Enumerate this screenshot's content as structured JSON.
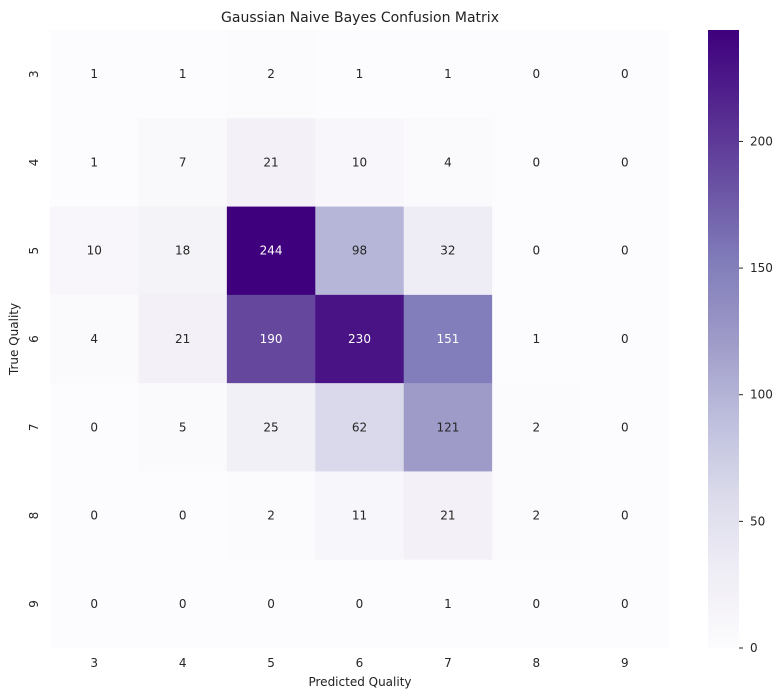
{
  "chart_data": {
    "type": "heatmap",
    "title": "Gaussian Naive Bayes Confusion Matrix",
    "xlabel": "Predicted Quality",
    "ylabel": "True Quality",
    "x_categories": [
      "3",
      "4",
      "5",
      "6",
      "7",
      "8",
      "9"
    ],
    "y_categories": [
      "3",
      "4",
      "5",
      "6",
      "7",
      "8",
      "9"
    ],
    "values": [
      [
        1,
        1,
        2,
        1,
        1,
        0,
        0
      ],
      [
        1,
        7,
        21,
        10,
        4,
        0,
        0
      ],
      [
        10,
        18,
        244,
        98,
        32,
        0,
        0
      ],
      [
        4,
        21,
        190,
        230,
        151,
        1,
        0
      ],
      [
        0,
        5,
        25,
        62,
        121,
        2,
        0
      ],
      [
        0,
        0,
        2,
        11,
        21,
        2,
        0
      ],
      [
        0,
        0,
        0,
        0,
        1,
        0,
        0
      ]
    ],
    "colorbar": {
      "range": [
        0,
        244
      ],
      "ticks": [
        0,
        50,
        100,
        150,
        200
      ],
      "colormap": "Purples"
    },
    "annotations": true,
    "grid": false
  }
}
